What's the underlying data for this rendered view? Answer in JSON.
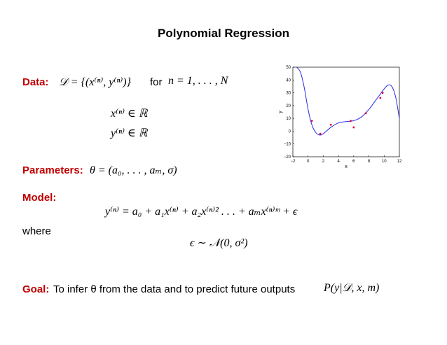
{
  "title": "Polynomial Regression",
  "data_section": {
    "label": "Data:",
    "math": "𝒟 = {(x⁽ⁿ⁾, y⁽ⁿ⁾)}",
    "for_word": "for",
    "range_math": "n = 1, . . . , N",
    "x_rel": "x⁽ⁿ⁾   ∈   ℝ",
    "y_rel": "y⁽ⁿ⁾   ∈   ℝ"
  },
  "parameters": {
    "label": "Parameters:",
    "math": "θ = (a₀, . . . , aₘ, σ)"
  },
  "model": {
    "label": "Model:",
    "equation": "y⁽ⁿ⁾ = a₀ + a₁x⁽ⁿ⁾ + a₂x⁽ⁿ⁾² . . . + aₘx⁽ⁿ⁾ᵐ + ϵ",
    "where_word": "where",
    "noise": "ϵ ∼ 𝒩(0, σ²)"
  },
  "goal": {
    "label": "Goal:",
    "text": "To infer θ from the data and to predict future outputs",
    "math": "P(y|𝒟, x, m)"
  },
  "colors": {
    "label": "#c00000",
    "curve": "#2a2ae0",
    "points": "#e0004a"
  },
  "chart_data": {
    "type": "scatter",
    "xlabel": "x",
    "ylabel": "y",
    "xlim": [
      -2,
      12
    ],
    "ylim": [
      -20,
      50
    ],
    "xticks": [
      "−2",
      "0",
      "2",
      "4",
      "6",
      "8",
      "10",
      "12"
    ],
    "yticks": [
      "−20",
      "−10",
      "0",
      "10",
      "20",
      "30",
      "40",
      "50"
    ],
    "points": [
      {
        "x": 0.5,
        "y": 8
      },
      {
        "x": 1.6,
        "y": -2
      },
      {
        "x": 3.0,
        "y": 5
      },
      {
        "x": 5.6,
        "y": 8
      },
      {
        "x": 6.0,
        "y": 3
      },
      {
        "x": 7.6,
        "y": 14
      },
      {
        "x": 9.5,
        "y": 26
      },
      {
        "x": 9.8,
        "y": 30
      }
    ],
    "curve": [
      {
        "x": -1.5,
        "y": 50
      },
      {
        "x": -1.0,
        "y": 46
      },
      {
        "x": -0.5,
        "y": 34
      },
      {
        "x": 0.0,
        "y": 17
      },
      {
        "x": 0.5,
        "y": 5
      },
      {
        "x": 1.0,
        "y": -1
      },
      {
        "x": 1.5,
        "y": -3
      },
      {
        "x": 2.0,
        "y": -2
      },
      {
        "x": 3.0,
        "y": 3
      },
      {
        "x": 4.0,
        "y": 6.5
      },
      {
        "x": 5.0,
        "y": 7.5
      },
      {
        "x": 6.0,
        "y": 8.2
      },
      {
        "x": 7.0,
        "y": 11
      },
      {
        "x": 8.0,
        "y": 17
      },
      {
        "x": 9.0,
        "y": 25
      },
      {
        "x": 10.0,
        "y": 33
      },
      {
        "x": 10.5,
        "y": 36
      },
      {
        "x": 11.0,
        "y": 35
      },
      {
        "x": 11.5,
        "y": 27
      },
      {
        "x": 12.0,
        "y": 10
      }
    ],
    "grid": false
  }
}
